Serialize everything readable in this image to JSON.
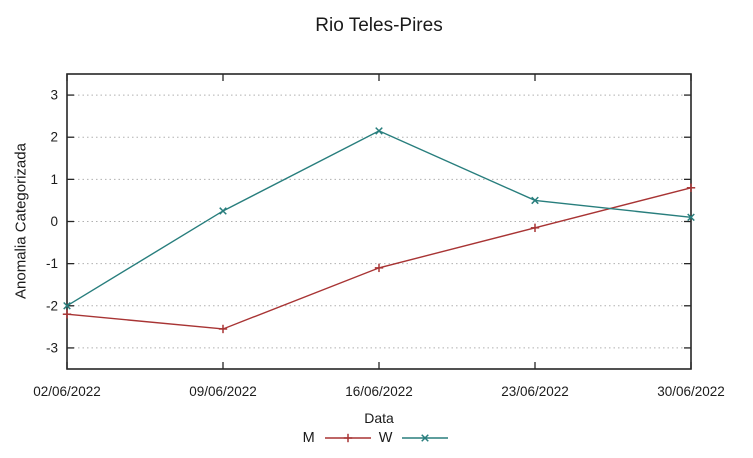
{
  "title": "Rio Teles-Pires",
  "colors": {
    "background": "#ffffff",
    "text": "#1c1c1c",
    "axis": "#262626",
    "grid": "#b0b0b0",
    "series_m": "#a83434",
    "series_w": "#287e7d"
  },
  "chart_data": {
    "type": "line",
    "title": "Rio Teles-Pires",
    "xlabel": "Data",
    "ylabel": "Anomalia Categorizada",
    "categories": [
      "02/06/2022",
      "09/06/2022",
      "16/06/2022",
      "23/06/2022",
      "30/06/2022"
    ],
    "series": [
      {
        "name": "M",
        "marker": "plus",
        "color": "#a83434",
        "values": [
          -2.2,
          -2.55,
          -1.1,
          -0.15,
          0.8
        ]
      },
      {
        "name": "W",
        "marker": "cross",
        "color": "#287e7d",
        "values": [
          -2.0,
          0.25,
          2.15,
          0.5,
          0.1
        ]
      }
    ],
    "ylim": [
      -3.5,
      3.5
    ],
    "yticks": [
      -3,
      -2,
      -1,
      0,
      1,
      2,
      3
    ],
    "grid": "horizontal-dotted",
    "legend_position": "bottom-center"
  }
}
